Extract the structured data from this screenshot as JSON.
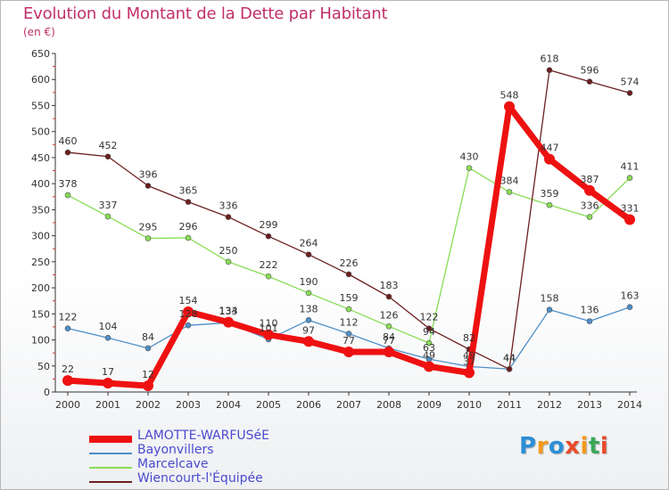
{
  "title": "Evolution du Montant de la Dette par Habitant",
  "unit": "(en €)",
  "chart_data": {
    "type": "line",
    "x": [
      2000,
      2001,
      2002,
      2003,
      2004,
      2005,
      2006,
      2007,
      2008,
      2009,
      2010,
      2011,
      2012,
      2013,
      2014
    ],
    "ylim": [
      0,
      650
    ],
    "yticks": [
      0,
      50,
      100,
      150,
      200,
      250,
      300,
      350,
      400,
      450,
      500,
      550,
      600,
      650
    ],
    "grid": false,
    "legend": "bottom-left",
    "series": [
      {
        "name": "LAMOTTE-WARFUSéE",
        "color": "#ee1111",
        "values": [
          22,
          17,
          12,
          154,
          134,
          110,
          97,
          77,
          77,
          49,
          37,
          548,
          447,
          387,
          331
        ],
        "labels": [
          "22",
          "17",
          "12",
          "154",
          "134",
          "110",
          "97",
          "77",
          "77",
          "49",
          "37",
          "548",
          "447",
          "387",
          "331"
        ]
      },
      {
        "name": "Bayonvillers",
        "color": "#4e8fc8",
        "values": [
          122,
          104,
          84,
          128,
          133,
          101,
          138,
          112,
          84,
          63,
          49,
          44,
          158,
          136,
          163
        ],
        "labels": [
          "122",
          "104",
          "84",
          "128",
          "133",
          "101",
          "138",
          "112",
          "84",
          "63",
          "49",
          "44",
          "158",
          "136",
          "163"
        ]
      },
      {
        "name": "Marcelcave",
        "color": "#88dd55",
        "values": [
          378,
          337,
          295,
          296,
          250,
          222,
          190,
          159,
          126,
          94,
          430,
          384,
          359,
          336,
          411
        ],
        "labels": [
          "378",
          "337",
          "295",
          "296",
          "250",
          "222",
          "190",
          "159",
          "126",
          "94",
          "430",
          "384",
          "359",
          "336",
          "411"
        ]
      },
      {
        "name": "Wiencourt-l'Équipée",
        "color": "#6b1e1e",
        "values": [
          460,
          452,
          396,
          365,
          336,
          299,
          264,
          226,
          183,
          122,
          82,
          44,
          618,
          596,
          574
        ],
        "labels": [
          "460",
          "452",
          "396",
          "365",
          "336",
          "299",
          "264",
          "226",
          "183",
          "122",
          "82",
          "44",
          "618",
          "596",
          "574"
        ]
      }
    ]
  },
  "logo": {
    "text": "Proxiti",
    "colors": [
      "#2b8fd6",
      "#f59a1b",
      "#2b8fd6",
      "#e84b2a",
      "#f59a1b",
      "#3aa858",
      "#e84b2a"
    ]
  }
}
